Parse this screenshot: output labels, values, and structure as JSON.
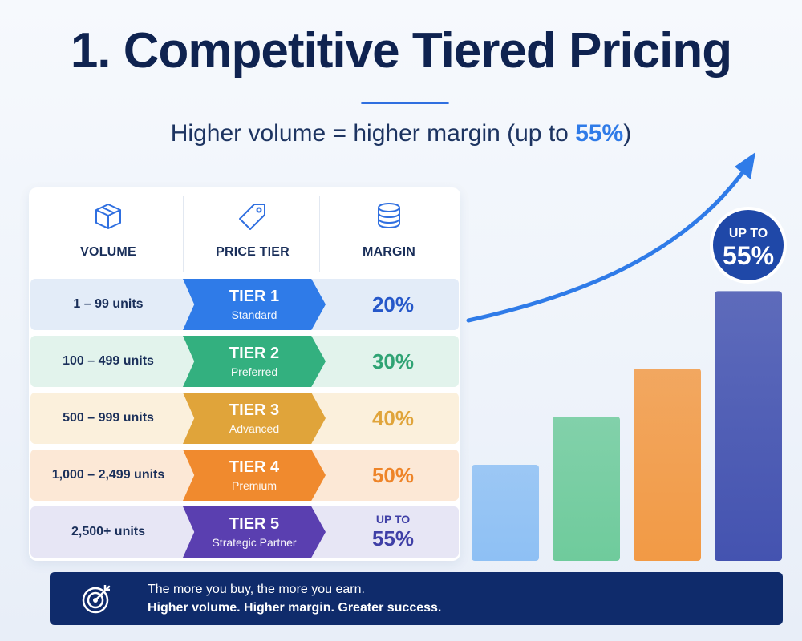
{
  "title": "1. Competitive Tiered Pricing",
  "subtitle": {
    "prefix": "Higher volume = higher margin (up to ",
    "accent": "55%",
    "suffix": ")",
    "accent_color": "#2f7be8"
  },
  "table": {
    "headers": [
      {
        "label": "VOLUME",
        "icon": "box-icon"
      },
      {
        "label": "PRICE TIER",
        "icon": "tag-icon"
      },
      {
        "label": "MARGIN",
        "icon": "coins-stack-icon"
      }
    ],
    "rows": [
      {
        "volume": "1 – 99 units",
        "tier": "TIER 1",
        "tier_sub": "Standard",
        "margin_prefix": "",
        "margin": "20%",
        "color": "#2f7be8",
        "row_bg": "#e3ecf8",
        "margin_color": "#2557c9"
      },
      {
        "volume": "100 – 499 units",
        "tier": "TIER 2",
        "tier_sub": "Preferred",
        "margin_prefix": "",
        "margin": "30%",
        "color": "#33b07f",
        "row_bg": "#e2f3ec",
        "margin_color": "#2fa374"
      },
      {
        "volume": "500 – 999 units",
        "tier": "TIER 3",
        "tier_sub": "Advanced",
        "margin_prefix": "",
        "margin": "40%",
        "color": "#e0a43a",
        "row_bg": "#fbf0dc",
        "margin_color": "#e0a43a"
      },
      {
        "volume": "1,000 – 2,499 units",
        "tier": "TIER 4",
        "tier_sub": "Premium",
        "margin_prefix": "",
        "margin": "50%",
        "color": "#f08a2e",
        "row_bg": "#fce8d6",
        "margin_color": "#ee8428"
      },
      {
        "volume": "2,500+ units",
        "tier": "TIER 5",
        "tier_sub": "Strategic Partner",
        "margin_prefix": "UP TO",
        "margin": "55%",
        "color": "#5a3fb0",
        "row_bg": "#e7e6f5",
        "margin_color": "#3f3fa6"
      }
    ]
  },
  "chart_data": {
    "type": "bar",
    "categories": [
      "TIER 1",
      "TIER 2",
      "TIER 3",
      "TIER 4",
      "TIER 5"
    ],
    "values": [
      20,
      30,
      40,
      50,
      55
    ],
    "bar_colors": [
      "#8ec0f4",
      "#6fcb9c",
      "#f4a551",
      "#f29a45",
      "#4453b0"
    ],
    "ylim": [
      0,
      60
    ],
    "grid": false,
    "trend_arrow": true,
    "arrow_color": "#2f7be8",
    "badge": {
      "line1": "UP TO",
      "line2": "55%",
      "color": "#1f48a8"
    }
  },
  "banner": {
    "line1": "The more you buy, the more you earn.",
    "line2": "Higher volume. Higher margin. Greater success.",
    "icon": "target-arrow-icon",
    "bg": "#0f2b6b"
  }
}
